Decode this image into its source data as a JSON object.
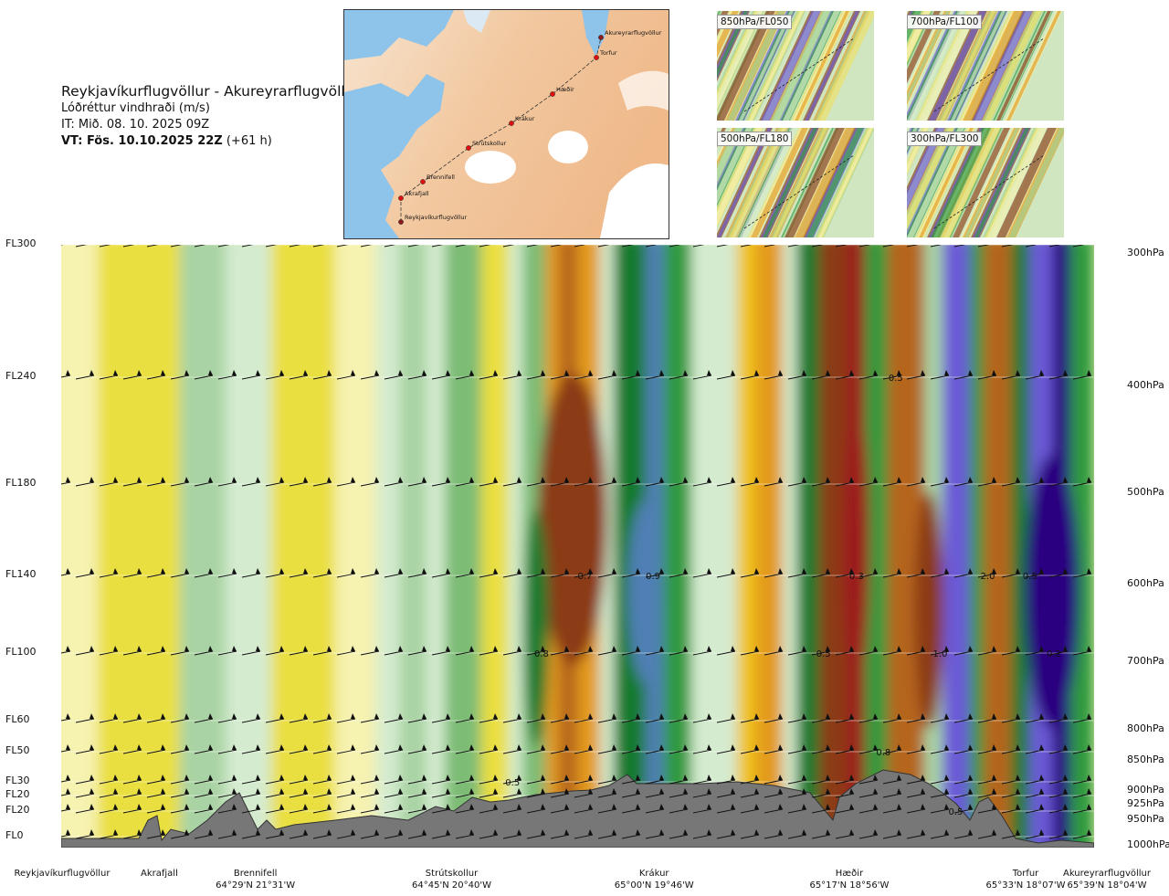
{
  "header": {
    "route": "Reykjavíkurflugvöllur - Akureyrarflugvöllur",
    "variable": "Lóðréttur vindhraði (m/s)",
    "issue_time": "IT: Mið. 08. 10. 2025 09Z",
    "valid_time": "VT: Fös. 10.10.2025 22Z",
    "lead_time": "(+61 h)"
  },
  "map": {
    "points": [
      {
        "name": "Akureyrarflugvöllur"
      },
      {
        "name": "Torfur"
      },
      {
        "name": "Hæðir"
      },
      {
        "name": "Krákur"
      },
      {
        "name": "Strútskollur"
      },
      {
        "name": "Brennifell"
      },
      {
        "name": "Akrafjall"
      },
      {
        "name": "Reykjavíkurflugvöllur"
      }
    ]
  },
  "thumbnails": [
    {
      "label": "850hPa/FL050"
    },
    {
      "label": "700hPa/FL100"
    },
    {
      "label": "500hPa/FL180"
    },
    {
      "label": "300hPa/FL300"
    }
  ],
  "chart_data": {
    "type": "heatmap",
    "description_levels_left": [
      {
        "label": "FL300",
        "pressure": 300
      },
      {
        "label": "FL240",
        "pressure": 400
      },
      {
        "label": "FL180",
        "pressure": 500
      },
      {
        "label": "FL140",
        "pressure": 600
      },
      {
        "label": "FL100",
        "pressure": 700
      },
      {
        "label": "FL60",
        "pressure": 800
      },
      {
        "label": "FL50",
        "pressure": 850
      },
      {
        "label": "FL30",
        "pressure": 900
      },
      {
        "label": "FL20",
        "pressure": 925
      },
      {
        "label": "FL20",
        "pressure": 950
      },
      {
        "label": "FL0",
        "pressure": 1000
      }
    ],
    "pressure_labels": [
      "300hPa",
      "400hPa",
      "500hPa",
      "600hPa",
      "700hPa",
      "800hPa",
      "850hPa",
      "900hPa",
      "925hPa",
      "950hPa",
      "1000hPa"
    ],
    "ylim": [
      1000,
      300
    ],
    "waypoints": [
      {
        "name": "Reykjavíkurflugvöllur",
        "coord": "",
        "x": 0
      },
      {
        "name": "Akrafjall",
        "coord": "",
        "x": 0.095
      },
      {
        "name": "Brennifell",
        "coord": "64°29'N 21°31'W",
        "x": 0.188
      },
      {
        "name": "Strútskollur",
        "coord": "64°45'N 20°40'W",
        "x": 0.378
      },
      {
        "name": "Krákur",
        "coord": "65°00'N 19°46'W",
        "x": 0.574
      },
      {
        "name": "Hæðir",
        "coord": "65°17'N 18°56'W",
        "x": 0.763
      },
      {
        "name": "Torfur",
        "coord": "65°33'N 18°07'W",
        "x": 0.948
      },
      {
        "name": "Akureyrarflugvöllur",
        "coord": "65°39'N 18°04'W",
        "x": 1.0
      }
    ],
    "contour_labels": [
      {
        "text": "0.5",
        "x": 0.808,
        "pressure": 400
      },
      {
        "text": "0.7",
        "x": 0.507,
        "pressure": 600
      },
      {
        "text": "0.9",
        "x": 0.573,
        "pressure": 600
      },
      {
        "text": "0.3",
        "x": 0.77,
        "pressure": 600
      },
      {
        "text": "2.0",
        "x": 0.897,
        "pressure": 600
      },
      {
        "text": "0.5",
        "x": 0.938,
        "pressure": 600
      },
      {
        "text": "0.8",
        "x": 0.465,
        "pressure": 700
      },
      {
        "text": "0.5",
        "x": 0.738,
        "pressure": 700
      },
      {
        "text": "1.0",
        "x": 0.851,
        "pressure": 700
      },
      {
        "text": "0.2",
        "x": 0.961,
        "pressure": 700
      },
      {
        "text": "0.8",
        "x": 0.796,
        "pressure": 850
      },
      {
        "text": "0.5",
        "x": 0.437,
        "pressure": 900
      },
      {
        "text": "0.5",
        "x": 0.866,
        "pressure": 950
      }
    ],
    "color_scale": [
      "#2a0080",
      "#6a5ad6",
      "#4f7fb4",
      "#137a2e",
      "#2f9a3e",
      "#7cbc74",
      "#a9d3a4",
      "#d4ebcf",
      "#f6f2b0",
      "#eadf40",
      "#efc21a",
      "#e39a1e",
      "#b5651d",
      "#8b3a12",
      "#9c1a1a"
    ]
  }
}
